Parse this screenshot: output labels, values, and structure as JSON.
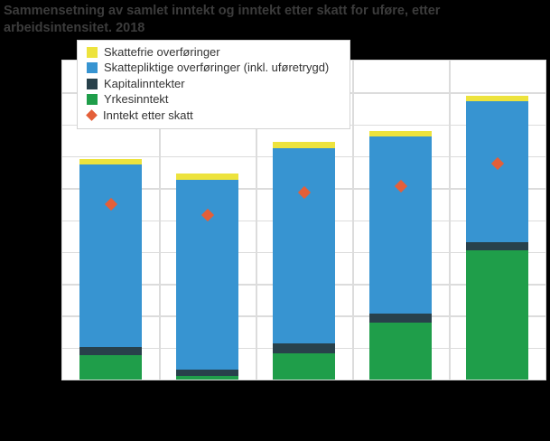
{
  "title": "Sammensetning av samlet inntekt og inntekt etter skatt for uføre, etter arbeidsintensitet. 2018",
  "colors": {
    "background": "#000000",
    "plot_background": "#ffffff",
    "grid": "#dcdcdc",
    "plot_border": "#d9d9d9",
    "title_text": "#3c3c3c",
    "legend_text": "#333333",
    "legend_border": "#d4d4d4",
    "skattefrie": "#ede33d",
    "skattepliktige": "#3794d1",
    "kapitalinntekter": "#28414b",
    "yrkesinntekt": "#1f9e4a",
    "inntekt_etter_skatt": "#e45f39"
  },
  "legend": {
    "items": [
      {
        "key": "skattefrie-overforinger",
        "label": "Skattefrie overføringer",
        "shape": "square",
        "color": "#ede33d"
      },
      {
        "key": "skattepliktige-overforinger",
        "label": "Skattepliktige overføringer (inkl. uføretrygd)",
        "shape": "square",
        "color": "#3794d1"
      },
      {
        "key": "kapitalinntekter",
        "label": "Kapitalinntekter",
        "shape": "square",
        "color": "#28414b"
      },
      {
        "key": "yrkesinntekt",
        "label": "Yrkesinntekt",
        "shape": "square",
        "color": "#1f9e4a"
      },
      {
        "key": "inntekt-etter-skatt",
        "label": "Inntekt etter skatt",
        "shape": "diamond",
        "color": "#e45f39"
      }
    ]
  },
  "chart_data": {
    "type": "bar",
    "stacked": true,
    "title": "Sammensetning av samlet inntekt og inntekt etter skatt for uføre, etter arbeidsintensitet. 2018",
    "categories": [
      "",
      "",
      "",
      "",
      ""
    ],
    "axis_tick_labels_visible": false,
    "ylim": [
      0,
      10
    ],
    "y_gridline_step": 1,
    "x_gridlines": true,
    "legend_position": "top-left-inside",
    "series": [
      {
        "key": "yrkesinntekt",
        "name": "Yrkesinntekt",
        "color": "#1f9e4a",
        "values": [
          0.77,
          0.1,
          0.83,
          1.78,
          4.04
        ]
      },
      {
        "key": "kapitalinntekter",
        "name": "Kapitalinntekter",
        "color": "#28414b",
        "values": [
          0.26,
          0.21,
          0.29,
          0.28,
          0.27
        ]
      },
      {
        "key": "skattepliktige-overforinger",
        "name": "Skattepliktige overføringer (inkl. uføretrygd)",
        "color": "#3794d1",
        "values": [
          5.7,
          5.95,
          6.14,
          5.56,
          4.42
        ]
      },
      {
        "key": "skattefrie-overforinger",
        "name": "Skattefrie overføringer",
        "color": "#ede33d",
        "values": [
          0.18,
          0.21,
          0.19,
          0.16,
          0.17
        ]
      }
    ],
    "marker_series": {
      "key": "inntekt-etter-skatt",
      "name": "Inntekt etter skatt",
      "color": "#e45f39",
      "marker": "diamond",
      "values": [
        5.51,
        5.17,
        5.86,
        6.07,
        6.77
      ]
    }
  }
}
